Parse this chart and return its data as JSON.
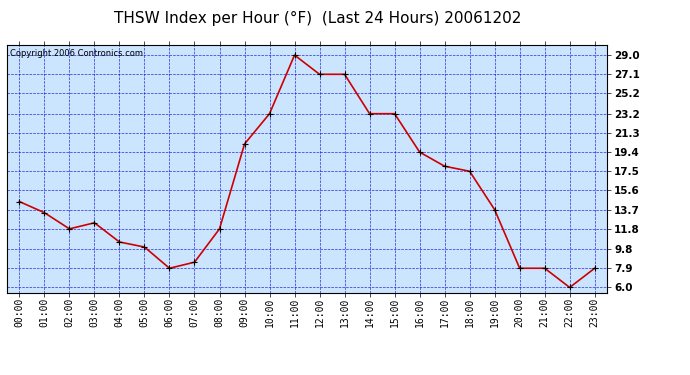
{
  "title": "THSW Index per Hour (°F)  (Last 24 Hours) 20061202",
  "copyright": "Copyright 2006 Contronics.com",
  "hours": [
    "00:00",
    "01:00",
    "02:00",
    "03:00",
    "04:00",
    "05:00",
    "06:00",
    "07:00",
    "08:00",
    "09:00",
    "10:00",
    "11:00",
    "12:00",
    "13:00",
    "14:00",
    "15:00",
    "16:00",
    "17:00",
    "18:00",
    "19:00",
    "20:00",
    "21:00",
    "22:00",
    "23:00"
  ],
  "values": [
    14.5,
    13.4,
    11.8,
    12.4,
    10.5,
    10.0,
    7.9,
    8.5,
    11.8,
    20.2,
    23.2,
    29.0,
    27.1,
    27.1,
    23.2,
    23.2,
    19.4,
    18.0,
    17.5,
    13.7,
    7.9,
    7.9,
    6.0,
    7.9
  ],
  "y_ticks": [
    6.0,
    7.9,
    9.8,
    11.8,
    13.7,
    15.6,
    17.5,
    19.4,
    21.3,
    23.2,
    25.2,
    27.1,
    29.0
  ],
  "ylim": [
    5.5,
    30.0
  ],
  "line_color": "#cc0000",
  "marker_color": "#000000",
  "bg_color": "#cce5ff",
  "grid_color": "#0000cc",
  "title_fontsize": 11,
  "copyright_fontsize": 6,
  "tick_fontsize": 7,
  "ytick_fontsize": 7.5
}
